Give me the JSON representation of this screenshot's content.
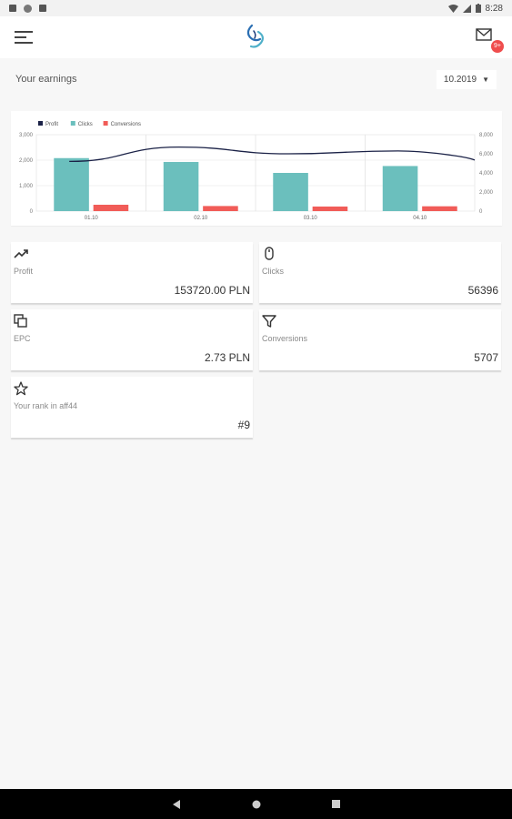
{
  "status_bar": {
    "time": "8:28"
  },
  "header": {
    "menu_icon": "hamburger-menu-icon",
    "logo_icon": "swirl-logo-icon",
    "mail_icon": "mail-icon",
    "badge": "9+"
  },
  "earnings": {
    "title": "Your earnings",
    "period": "10.2019"
  },
  "chart_data": {
    "type": "bar",
    "categories": [
      "01.10",
      "02.10",
      "03.10",
      "04.10"
    ],
    "series": [
      {
        "name": "Profit",
        "kind": "line",
        "axis": "right",
        "values": [
          5200,
          6700,
          6000,
          6300
        ],
        "color": "#1b2247"
      },
      {
        "name": "Clicks",
        "kind": "bar",
        "axis": "left",
        "values": [
          2080,
          1930,
          1500,
          1770
        ],
        "color": "#6bbfbd"
      },
      {
        "name": "Conversions",
        "kind": "bar",
        "axis": "left",
        "values": [
          250,
          200,
          180,
          190
        ],
        "color": "#f15c58"
      }
    ],
    "left_axis": {
      "ticks": [
        "0",
        "1,000",
        "2,000",
        "3,000"
      ],
      "range": [
        0,
        3000
      ]
    },
    "right_axis": {
      "ticks": [
        "0",
        "2,000",
        "4,000",
        "6,000",
        "8,000"
      ],
      "range": [
        0,
        8000
      ]
    },
    "legend_position": "top-left",
    "grid": true
  },
  "cards": {
    "profit": {
      "label": "Profit",
      "value": "153720.00 PLN",
      "icon": "trending-up-icon"
    },
    "clicks": {
      "label": "Clicks",
      "value": "56396",
      "icon": "mouse-icon"
    },
    "epc": {
      "label": "EPC",
      "value": "2.73 PLN",
      "icon": "copy-icon"
    },
    "conversions": {
      "label": "Conversions",
      "value": "5707",
      "icon": "filter-icon"
    },
    "rank": {
      "label": "Your rank in aff44",
      "value": "#9",
      "icon": "star-icon"
    }
  },
  "navbar": {
    "back_icon": "back-triangle-icon",
    "home_icon": "home-circle-icon",
    "recents_icon": "recents-square-icon"
  }
}
